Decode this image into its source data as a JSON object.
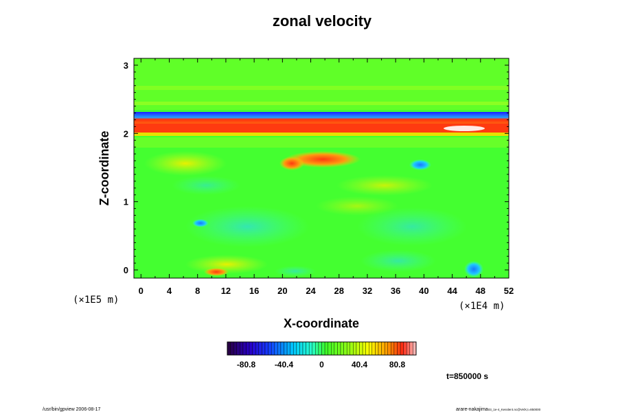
{
  "chart_data": {
    "type": "heatmap",
    "title": "zonal velocity",
    "xlabel": "X-coordinate",
    "ylabel": "Z-coordinate",
    "x_scale_label": "(×1E4 m)",
    "y_scale_label": "(×1E5 m)",
    "xlim": [
      -1,
      52
    ],
    "ylim": [
      -0.12,
      3.1
    ],
    "x_ticks": [
      0,
      4,
      8,
      12,
      16,
      20,
      24,
      28,
      32,
      36,
      40,
      44,
      48,
      52
    ],
    "y_ticks": [
      0,
      1,
      2,
      3
    ],
    "colorbar": {
      "ticks": [
        -80.8,
        -40.4,
        0,
        40.4,
        80.8
      ],
      "range": [
        -101,
        101
      ]
    },
    "time_label": "t=850000 s",
    "footer_left": "/usr/bin/gpview 2006-08-17",
    "footer_right_user": "arare-nakajima",
    "footer_right_file": "03_1e-4_Kessler4.nc@VelX,t=850000"
  }
}
